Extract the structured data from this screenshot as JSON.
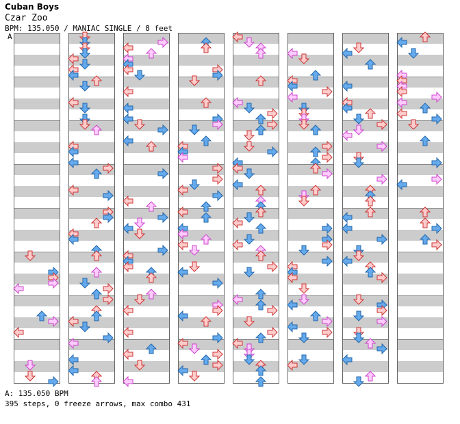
{
  "header": {
    "title": "Cuban Boys",
    "artist": "Czar Zoo",
    "info": "BPM: 135.050 / MANIAC SINGLE / 8 feet",
    "segment_label": "A"
  },
  "footer": {
    "bpm_line": "A: 135.050 BPM",
    "stats_line": "395 steps, 0 freeze arrows, max combo 431"
  },
  "chart": {
    "columns": 8,
    "measures_per_column": 8,
    "colors": {
      "stripe": "#cccccc",
      "left_arrow_fill": "#ffcccc",
      "left_arrow_stroke": "#cc3333",
      "down_arrow_fill": "#66aaee",
      "down_arrow_stroke": "#2266aa",
      "mine_fill": "#ffccff",
      "mine_stroke": "#cc44cc"
    },
    "arrow_types": [
      "left-arrow",
      "down-arrow",
      "up-arrow",
      "right-arrow"
    ]
  }
}
